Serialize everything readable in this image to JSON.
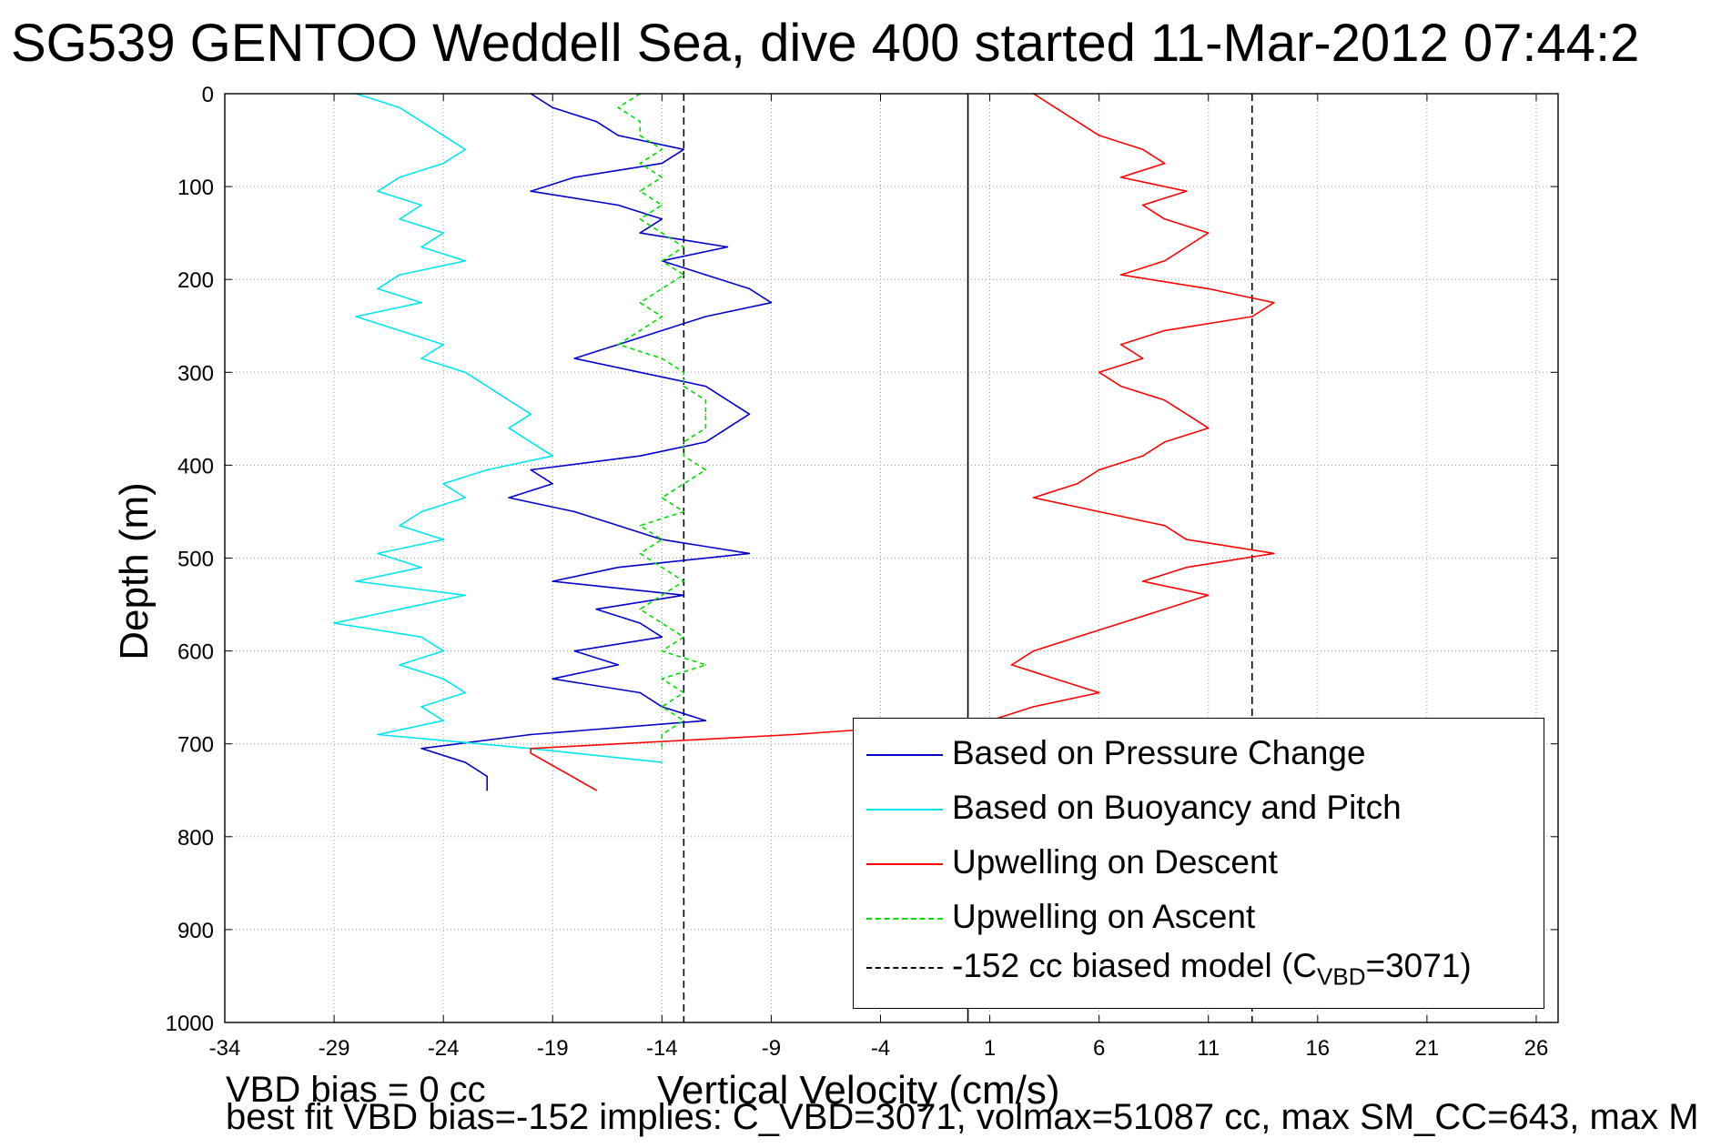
{
  "title": "SG539 GENTOO Weddell Sea, dive 400 started 11-Mar-2012 07:44:2",
  "footer": {
    "line1": "VBD bias = 0 cc",
    "line2": "best fit VBD bias=-152 implies: C_VBD=3071, volmax=51087 cc, max SM_CC=643, max M"
  },
  "colors": {
    "pressure": "#0000cc",
    "buoyancy": "#00e5ee",
    "descent": "#ff0000",
    "ascent": "#00dd00",
    "model": "#000000",
    "grid": "#9a9a9a"
  },
  "legend": {
    "items": [
      {
        "label": "Based on Pressure Change",
        "color": "#0000cc",
        "style": "solid"
      },
      {
        "label": "Based on Buoyancy and Pitch",
        "color": "#00e5ee",
        "style": "solid"
      },
      {
        "label": "Upwelling on Descent",
        "color": "#ff0000",
        "style": "solid"
      },
      {
        "label": "Upwelling on Ascent",
        "color": "#00dd00",
        "style": "dashed"
      },
      {
        "label_prefix": "-152 cc biased model (C",
        "label_sub": "VBD",
        "label_suffix": "=3071)",
        "color": "#000000",
        "style": "dashed"
      }
    ]
  },
  "chart_data": {
    "type": "line",
    "title": "SG539 GENTOO Weddell Sea, dive 400 started 11-Mar-2012 07:44:2",
    "xlabel": "Vertical Velocity (cm/s)",
    "ylabel": "Depth (m)",
    "xlim": [
      -34,
      27
    ],
    "ylim": [
      0,
      1000
    ],
    "y_reversed": true,
    "grid": true,
    "legend_position": "bottom-right",
    "xticks": [
      -34,
      -29,
      -24,
      -19,
      -14,
      -9,
      -4,
      1,
      6,
      11,
      16,
      21,
      26
    ],
    "yticks": [
      0,
      100,
      200,
      300,
      400,
      500,
      600,
      700,
      800,
      900,
      1000
    ],
    "reference_lines": [
      {
        "x": 0,
        "style": "solid",
        "color": "#000000"
      },
      {
        "x": -13,
        "style": "dashed",
        "color": "#000000"
      },
      {
        "x": 13,
        "style": "dashed",
        "color": "#000000"
      }
    ],
    "series": [
      {
        "name": "Based on Pressure Change",
        "color": "#0000cc",
        "style": "solid",
        "depth": [
          0,
          15,
          30,
          45,
          60,
          75,
          90,
          105,
          120,
          135,
          150,
          165,
          180,
          195,
          210,
          225,
          240,
          255,
          270,
          285,
          300,
          315,
          330,
          345,
          360,
          375,
          390,
          405,
          420,
          435,
          450,
          465,
          480,
          495,
          510,
          525,
          540,
          555,
          570,
          585,
          600,
          615,
          630,
          645,
          660,
          675,
          690,
          705,
          720,
          735,
          750
        ],
        "velocity": [
          -20,
          -19,
          -17,
          -16,
          -13,
          -14,
          -18,
          -20,
          -16,
          -14,
          -15,
          -11,
          -14,
          -12,
          -10,
          -9,
          -12,
          -14,
          -16,
          -18,
          -15,
          -12,
          -11,
          -10,
          -11,
          -12,
          -15,
          -20,
          -19,
          -21,
          -18,
          -16,
          -14,
          -10,
          -16,
          -19,
          -13,
          -17,
          -15,
          -14,
          -18,
          -16,
          -19,
          -15,
          -14,
          -12,
          -20,
          -25,
          -23,
          -22,
          -22
        ]
      },
      {
        "name": "Based on Buoyancy and Pitch",
        "color": "#00e5ee",
        "style": "solid",
        "depth": [
          0,
          15,
          30,
          45,
          60,
          75,
          90,
          105,
          120,
          135,
          150,
          165,
          180,
          195,
          210,
          225,
          240,
          255,
          270,
          285,
          300,
          315,
          330,
          345,
          360,
          375,
          390,
          405,
          420,
          435,
          450,
          465,
          480,
          495,
          510,
          525,
          540,
          555,
          570,
          585,
          600,
          615,
          630,
          645,
          660,
          675,
          690,
          705,
          720
        ],
        "velocity": [
          -28,
          -26,
          -25,
          -24,
          -23,
          -24,
          -26,
          -27,
          -25,
          -26,
          -24,
          -25,
          -23,
          -26,
          -27,
          -25,
          -28,
          -26,
          -24,
          -25,
          -23,
          -22,
          -21,
          -20,
          -21,
          -20,
          -19,
          -22,
          -24,
          -23,
          -25,
          -26,
          -24,
          -27,
          -25,
          -28,
          -23,
          -26,
          -29,
          -25,
          -24,
          -26,
          -24,
          -23,
          -25,
          -24,
          -27,
          -20,
          -14
        ]
      },
      {
        "name": "Upwelling on Descent",
        "color": "#ff0000",
        "style": "solid",
        "depth": [
          0,
          15,
          30,
          45,
          60,
          75,
          90,
          105,
          120,
          135,
          150,
          165,
          180,
          195,
          210,
          225,
          240,
          255,
          270,
          285,
          300,
          315,
          330,
          345,
          360,
          375,
          390,
          405,
          420,
          435,
          450,
          465,
          480,
          495,
          510,
          525,
          540,
          555,
          570,
          585,
          600,
          615,
          630,
          645,
          660,
          675,
          690,
          705,
          710,
          750
        ],
        "velocity": [
          3,
          4,
          5,
          6,
          8,
          9,
          7,
          10,
          8,
          9,
          11,
          10,
          9,
          7,
          11,
          14,
          13,
          9,
          7,
          8,
          6,
          7,
          9,
          10,
          11,
          9,
          8,
          6,
          5,
          3,
          6,
          9,
          10,
          14,
          10,
          8,
          11,
          9,
          7,
          5,
          3,
          2,
          4,
          6,
          3,
          1,
          -8,
          -20,
          -20,
          -17
        ]
      },
      {
        "name": "Upwelling on Ascent",
        "color": "#00dd00",
        "style": "dashed",
        "depth": [
          0,
          15,
          30,
          45,
          60,
          75,
          90,
          105,
          120,
          135,
          150,
          165,
          180,
          195,
          210,
          225,
          240,
          255,
          270,
          285,
          300,
          315,
          330,
          345,
          360,
          375,
          390,
          405,
          420,
          435,
          450,
          465,
          480,
          495,
          510,
          525,
          540,
          555,
          570,
          585,
          600,
          615,
          630,
          645,
          660,
          675,
          690,
          705
        ],
        "velocity": [
          -15,
          -16,
          -15,
          -15,
          -14,
          -15,
          -14,
          -15,
          -14,
          -15,
          -14,
          -13,
          -14,
          -13,
          -14,
          -15,
          -14,
          -15,
          -16,
          -14,
          -13,
          -13,
          -12,
          -12,
          -12,
          -13,
          -13,
          -12,
          -13,
          -14,
          -13,
          -15,
          -14,
          -15,
          -14,
          -13,
          -14,
          -15,
          -14,
          -13,
          -14,
          -12,
          -14,
          -13,
          -14,
          -13,
          -14,
          -14
        ]
      }
    ]
  }
}
